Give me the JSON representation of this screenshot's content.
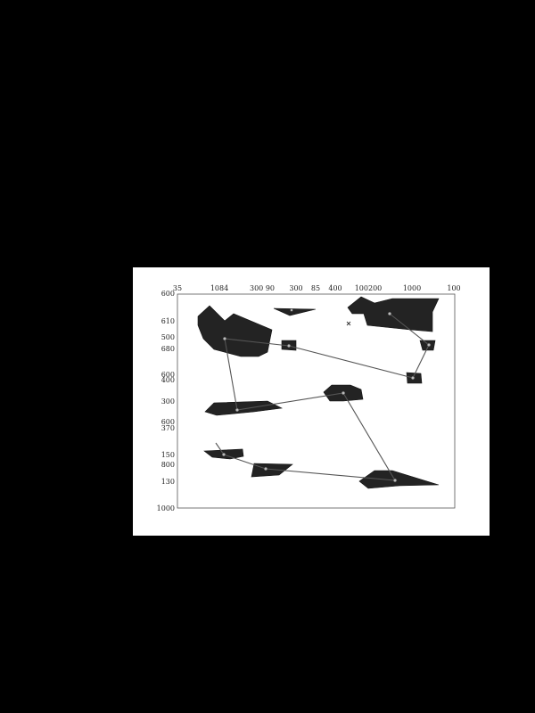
{
  "top_labels": [
    "35",
    "1084",
    "300 90",
    "300",
    "85",
    "400",
    "100200",
    "1000",
    "100"
  ],
  "left_labels": [
    "600",
    "610",
    "500",
    "680",
    "600",
    "400",
    "300",
    "600",
    "370",
    "150",
    "800",
    "130",
    "1000"
  ]
}
